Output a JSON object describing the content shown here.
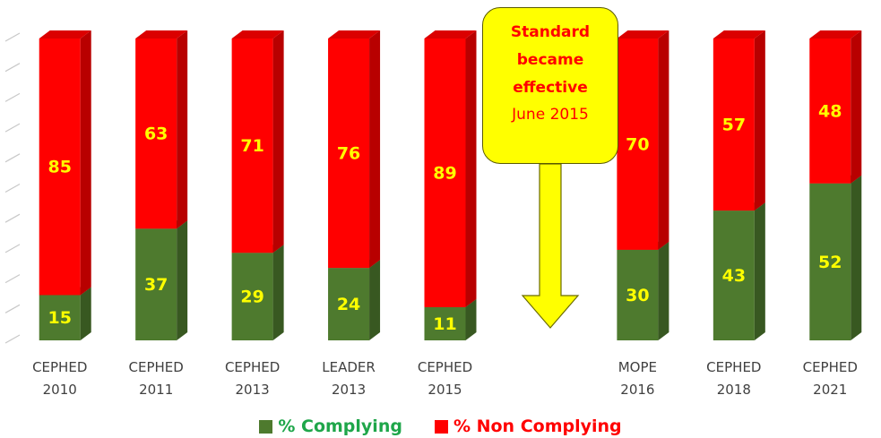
{
  "chart_data": {
    "type": "stacked_bar_3d",
    "categories": [
      "CEPHED 2010",
      "CEPHED 2011",
      "CEPHED 2013",
      "LEADER 2013",
      "CEPHED 2015",
      null,
      "MOPE 2016",
      "CEPHED 2018",
      "CEPHED 2021"
    ],
    "series": [
      {
        "name": "% Complying",
        "color": "#4e7a2e",
        "values": [
          15,
          37,
          29,
          24,
          11,
          null,
          30,
          43,
          52
        ]
      },
      {
        "name": "% Non Complying",
        "color": "#ff0000",
        "values": [
          85,
          63,
          71,
          76,
          89,
          null,
          70,
          57,
          48
        ]
      }
    ],
    "ylim": [
      0,
      100
    ],
    "yticks": [
      0,
      10,
      20,
      30,
      40,
      50,
      60,
      70,
      80,
      90,
      100
    ],
    "grid": true,
    "legend": "bottom",
    "annotation": {
      "text": "Standard became effective",
      "date": "June 2015"
    }
  }
}
